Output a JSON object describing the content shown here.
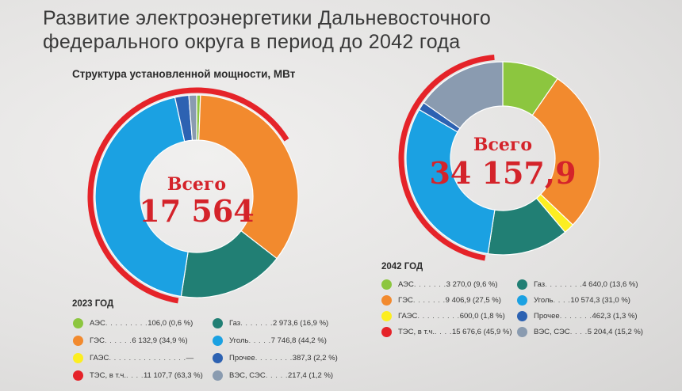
{
  "title": "Развитие электроэнергетики Дальневосточного федерального округа в период до 2042 года",
  "subtitle": "Структура установленной мощности, МВт",
  "colors": {
    "aes": "#8cc63f",
    "ges": "#f28a2e",
    "gaes": "#fcee21",
    "tes": "#e52329",
    "gas": "#217f74",
    "coal": "#1ba1e2",
    "other": "#2d62b2",
    "ves": "#8a9bb0"
  },
  "chart_data": [
    {
      "type": "pie",
      "variant": "donut",
      "year_label": "2023 ГОД",
      "total_word": "Всего",
      "total_value": "17 564",
      "slices": [
        {
          "key": "aes",
          "value": 106.0,
          "percent": 0.6
        },
        {
          "key": "ges",
          "value": 6132.9,
          "percent": 34.9
        },
        {
          "key": "gas",
          "value": 2973.6,
          "percent": 16.9
        },
        {
          "key": "coal",
          "value": 7746.8,
          "percent": 44.2
        },
        {
          "key": "other",
          "value": 387.3,
          "percent": 2.2
        },
        {
          "key": "ves",
          "value": 217.4,
          "percent": 1.2
        }
      ],
      "outer_arc": {
        "key": "tes",
        "value": 11107.7,
        "percent": 63.3
      },
      "legend": [
        {
          "key": "aes",
          "name": "АЭС",
          "dots": " . . . . . . . . .",
          "value": "106,0 (0,6 %)"
        },
        {
          "key": "gas",
          "name": "Газ",
          "dots": " . . . . . . .",
          "value": "2 973,6 (16,9 %)"
        },
        {
          "key": "ges",
          "name": "ГЭС",
          "dots": ". . . . . .",
          "value": "6 132,9 (34,9 %)"
        },
        {
          "key": "coal",
          "name": "Уголь",
          "dots": " . . . . .",
          "value": "7 746,8 (44,2 %)"
        },
        {
          "key": "gaes",
          "name": "ГАЭС",
          "dots": " . . . . . . . . . . . . . . . .",
          "value": "—"
        },
        {
          "key": "other",
          "name": "Прочее",
          "dots": " . . . . . . . .",
          "value": "387,3 (2,2 %)"
        },
        {
          "key": "tes",
          "name": "ТЭС, в т.ч.",
          "dots": " . . . .",
          "value": "11 107,7 (63,3 %)"
        },
        {
          "key": "ves",
          "name": "ВЭС, СЭС",
          "dots": " . . . . .",
          "value": "217,4 (1,2 %)"
        }
      ]
    },
    {
      "type": "pie",
      "variant": "donut",
      "year_label": "2042 ГОД",
      "total_word": "Всего",
      "total_value": "34 157,9",
      "slices": [
        {
          "key": "aes",
          "value": 3270.0,
          "percent": 9.6
        },
        {
          "key": "ges",
          "value": 9406.9,
          "percent": 27.5
        },
        {
          "key": "gaes",
          "value": 600.0,
          "percent": 1.8
        },
        {
          "key": "gas",
          "value": 4640.0,
          "percent": 13.6
        },
        {
          "key": "coal",
          "value": 10574.3,
          "percent": 31.0
        },
        {
          "key": "other",
          "value": 462.3,
          "percent": 1.3
        },
        {
          "key": "ves",
          "value": 5204.4,
          "percent": 15.2
        }
      ],
      "outer_arc": {
        "key": "tes",
        "value": 15676.6,
        "percent": 45.9
      },
      "legend": [
        {
          "key": "aes",
          "name": "АЭС",
          "dots": " . . . . . . .",
          "value": "3 270,0 (9,6 %)"
        },
        {
          "key": "gas",
          "name": "Газ",
          "dots": " . . . . . . . .",
          "value": "4 640,0 (13,6 %)"
        },
        {
          "key": "ges",
          "name": "ГЭС",
          "dots": ". . . . . . .",
          "value": "9 406,9 (27,5 %)"
        },
        {
          "key": "coal",
          "name": "Уголь",
          "dots": " . . . .",
          "value": "10 574,3 (31,0 %)"
        },
        {
          "key": "gaes",
          "name": "ГАЭС",
          "dots": " . . . . . . . . .",
          "value": "600,0 (1,8 %)"
        },
        {
          "key": "other",
          "name": "Прочее",
          "dots": " . . . . . . .",
          "value": "462,3 (1,3 %)"
        },
        {
          "key": "tes",
          "name": "ТЭС, в т.ч.",
          "dots": " . . . .",
          "value": "15 676,6 (45,9 %)"
        },
        {
          "key": "ves",
          "name": "ВЭС, СЭС",
          "dots": " . . . .",
          "value": "5 204,4 (15,2 %)"
        }
      ]
    }
  ]
}
